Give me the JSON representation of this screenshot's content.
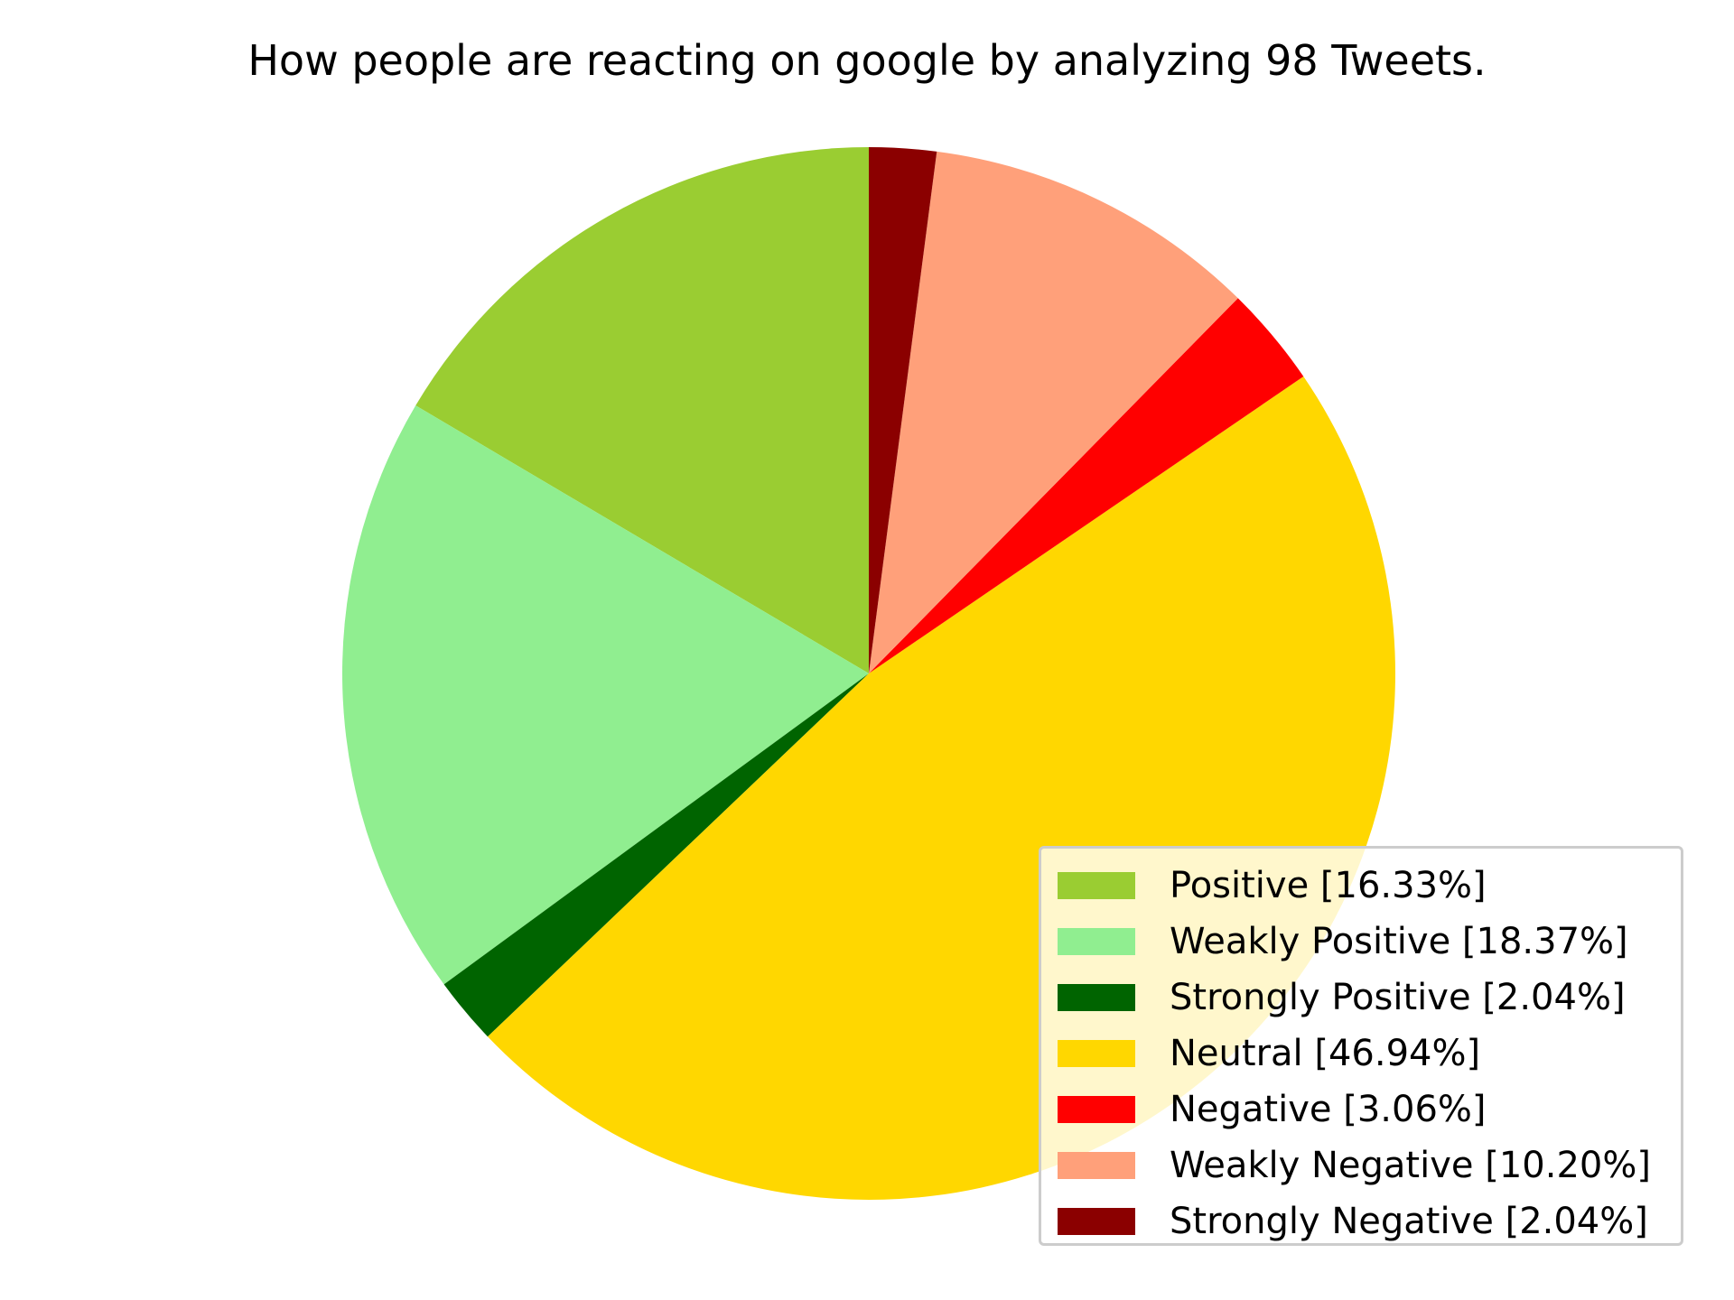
{
  "chart_data": {
    "type": "pie",
    "title": "How people are reacting on google by analyzing 98 Tweets.",
    "slices": [
      {
        "label": "Positive [16.33%]",
        "value": 16.33,
        "color": "#9acd32"
      },
      {
        "label": "Weakly Positive [18.37%]",
        "value": 18.37,
        "color": "#90ee90"
      },
      {
        "label": "Strongly Positive [2.04%]",
        "value": 2.04,
        "color": "#006400"
      },
      {
        "label": "Neutral [46.94%]",
        "value": 46.94,
        "color": "#ffd700"
      },
      {
        "label": "Negative [3.06%]",
        "value": 3.06,
        "color": "#ff0000"
      },
      {
        "label": "Weakly Negative [10.20%]",
        "value": 10.2,
        "color": "#ffa07a"
      },
      {
        "label": "Strongly Negative [2.04%]",
        "value": 2.04,
        "color": "#8b0000"
      }
    ],
    "start_angle_deg": 90,
    "direction": "counterclockwise",
    "legend_position": "lower-right"
  }
}
